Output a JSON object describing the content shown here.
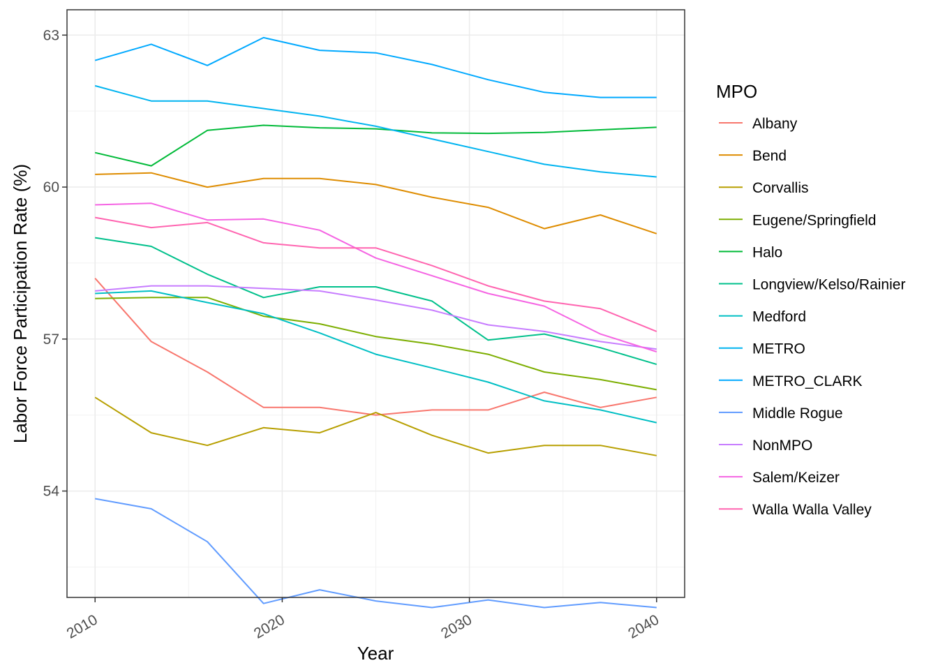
{
  "chart_data": {
    "type": "line",
    "xlabel": "Year",
    "ylabel": "Labor Force Participation Rate (%)",
    "xlim": [
      2008.5,
      2041.5
    ],
    "ylim": [
      51.9,
      63.5
    ],
    "x_ticks": [
      2010,
      2020,
      2030,
      2040
    ],
    "y_ticks": [
      54,
      57,
      60,
      63
    ],
    "x_tick_labels": [
      "2010",
      "2020",
      "2030",
      "2040"
    ],
    "y_tick_labels": [
      "54",
      "57",
      "60",
      "63"
    ],
    "grid": true,
    "legend_title": "MPO",
    "legend_position": "right",
    "x": [
      2010,
      2013,
      2016,
      2019,
      2022,
      2025,
      2028,
      2031,
      2034,
      2037,
      2040
    ],
    "series": [
      {
        "name": "Albany",
        "color": "#F8766D",
        "values": [
          58.2,
          56.95,
          56.35,
          55.65,
          55.65,
          55.5,
          55.6,
          55.6,
          55.95,
          55.65,
          55.85
        ]
      },
      {
        "name": "Bend",
        "color": "#DE8C00",
        "values": [
          60.25,
          60.28,
          60.0,
          60.17,
          60.17,
          60.05,
          59.8,
          59.6,
          59.18,
          59.45,
          59.08
        ]
      },
      {
        "name": "Corvallis",
        "color": "#B79F00",
        "values": [
          55.85,
          55.15,
          54.9,
          55.25,
          55.15,
          55.55,
          55.1,
          54.75,
          54.9,
          54.9,
          54.7
        ]
      },
      {
        "name": "Eugene/Springfield",
        "color": "#7CAE00",
        "values": [
          57.8,
          57.82,
          57.82,
          57.45,
          57.3,
          57.05,
          56.9,
          56.7,
          56.35,
          56.2,
          56.0
        ]
      },
      {
        "name": "Halo",
        "color": "#00BA38",
        "values": [
          60.68,
          60.42,
          61.12,
          61.22,
          61.17,
          61.15,
          61.07,
          61.06,
          61.08,
          61.13,
          61.18
        ]
      },
      {
        "name": "Longview/Kelso/Rainier",
        "color": "#00C08B",
        "values": [
          59.0,
          58.83,
          58.28,
          57.82,
          58.03,
          58.03,
          57.75,
          56.98,
          57.1,
          56.83,
          56.5
        ]
      },
      {
        "name": "Medford",
        "color": "#00BFC4",
        "values": [
          57.9,
          57.95,
          57.72,
          57.5,
          57.12,
          56.7,
          56.43,
          56.15,
          55.78,
          55.6,
          55.35
        ]
      },
      {
        "name": "METRO",
        "color": "#00B4F0",
        "values": [
          62.0,
          61.7,
          61.7,
          61.55,
          61.4,
          61.2,
          60.95,
          60.7,
          60.45,
          60.3,
          60.2
        ]
      },
      {
        "name": "METRO_CLARK",
        "color": "#00A9FF",
        "values": [
          62.5,
          62.82,
          62.4,
          62.95,
          62.7,
          62.65,
          62.42,
          62.12,
          61.87,
          61.77,
          61.77
        ]
      },
      {
        "name": "Middle Rogue",
        "color": "#619CFF",
        "values": [
          53.85,
          53.65,
          53.0,
          51.78,
          52.05,
          51.83,
          51.7,
          51.85,
          51.7,
          51.8,
          51.7
        ]
      },
      {
        "name": "NonMPO",
        "color": "#C77CFF",
        "values": [
          57.95,
          58.05,
          58.05,
          58.0,
          57.95,
          57.77,
          57.57,
          57.28,
          57.15,
          56.95,
          56.8
        ]
      },
      {
        "name": "Salem/Keizer",
        "color": "#F564E3",
        "values": [
          59.65,
          59.68,
          59.35,
          59.37,
          59.15,
          58.6,
          58.25,
          57.9,
          57.65,
          57.1,
          56.75
        ]
      },
      {
        "name": "Walla Walla Valley",
        "color": "#FF64B0",
        "values": [
          59.4,
          59.2,
          59.3,
          58.9,
          58.8,
          58.8,
          58.45,
          58.05,
          57.75,
          57.6,
          57.15
        ]
      }
    ]
  }
}
